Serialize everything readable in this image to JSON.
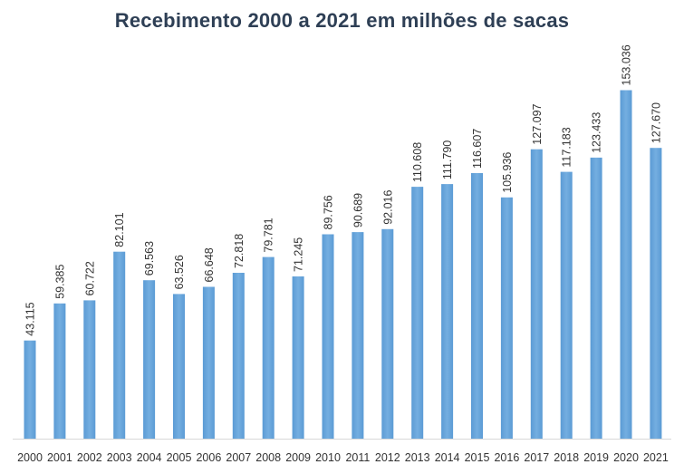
{
  "chart_data": {
    "type": "bar",
    "title": "Recebimento 2000 a 2021 em milhões de sacas",
    "xlabel": "",
    "ylabel": "",
    "ylim": [
      0,
      160
    ],
    "grid": false,
    "legend": "none",
    "bar_color": "#5b9bd5",
    "bar_color_light": "#74aee0",
    "categories": [
      "2000",
      "2001",
      "2002",
      "2003",
      "2004",
      "2005",
      "2006",
      "2007",
      "2008",
      "2009",
      "2010",
      "2011",
      "2012",
      "2013",
      "2014",
      "2015",
      "2016",
      "2017",
      "2018",
      "2019",
      "2020",
      "2021"
    ],
    "values": [
      43.115,
      59.385,
      60.722,
      82.101,
      69.563,
      63.526,
      66.648,
      72.818,
      79.781,
      71.245,
      89.756,
      90.689,
      92.016,
      110.608,
      111.79,
      116.607,
      105.936,
      127.097,
      117.183,
      123.433,
      153.036,
      127.67
    ],
    "data_labels": [
      "43.115",
      "59.385",
      "60.722",
      "82.101",
      "69.563",
      "63.526",
      "66.648",
      "72.818",
      "79.781",
      "71.245",
      "89.756",
      "90.689",
      "92.016",
      "110.608",
      "111.790",
      "116.607",
      "105.936",
      "127.097",
      "117.183",
      "123.433",
      "153.036",
      "127.670"
    ]
  }
}
